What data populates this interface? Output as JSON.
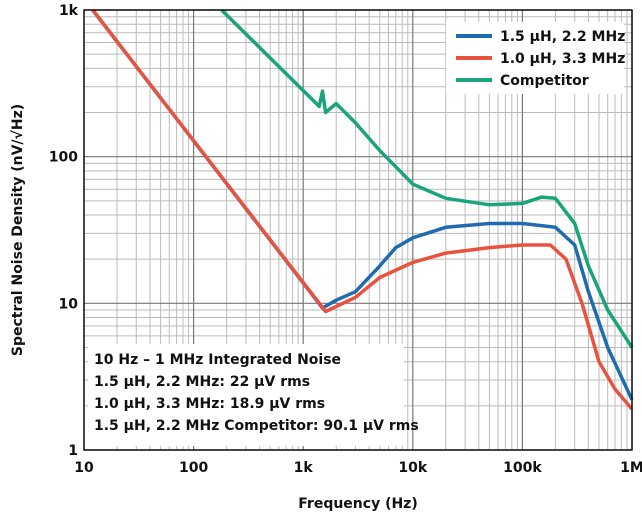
{
  "chart_data": {
    "type": "line",
    "xlabel": "Frequency (Hz)",
    "ylabel": "Spectral Noise Density (nV/√Hz)",
    "xscale": "log",
    "yscale": "log",
    "xlim": [
      10,
      1000000
    ],
    "ylim": [
      1,
      1000
    ],
    "grid": true,
    "legend_placement": "top-right",
    "x_ticks": [
      {
        "v": 10,
        "label": "10"
      },
      {
        "v": 100,
        "label": "100"
      },
      {
        "v": 1000,
        "label": "1k"
      },
      {
        "v": 10000,
        "label": "10k"
      },
      {
        "v": 100000,
        "label": "100k"
      },
      {
        "v": 1000000,
        "label": "1M"
      }
    ],
    "y_ticks": [
      {
        "v": 1,
        "label": "1"
      },
      {
        "v": 10,
        "label": "10"
      },
      {
        "v": 100,
        "label": "100"
      },
      {
        "v": 1000,
        "label": "1k"
      }
    ],
    "series": [
      {
        "name": "1.5 µH, 2.2 MHz",
        "color": "#1f6bb0",
        "points": [
          [
            12,
            1000
          ],
          [
            1500,
            9.3
          ],
          [
            2000,
            10.5
          ],
          [
            3000,
            12
          ],
          [
            5000,
            18
          ],
          [
            7000,
            24
          ],
          [
            10000,
            28
          ],
          [
            20000,
            33
          ],
          [
            50000,
            35
          ],
          [
            100000,
            35
          ],
          [
            200000,
            33
          ],
          [
            300000,
            25
          ],
          [
            400000,
            12
          ],
          [
            600000,
            5
          ],
          [
            1000000,
            2.2
          ]
        ]
      },
      {
        "name": "1.0 µH, 3.3 MHz",
        "color": "#e8523f",
        "points": [
          [
            12,
            1000
          ],
          [
            1600,
            8.8
          ],
          [
            3000,
            11
          ],
          [
            5000,
            15
          ],
          [
            10000,
            19
          ],
          [
            20000,
            22
          ],
          [
            50000,
            24
          ],
          [
            100000,
            25
          ],
          [
            180000,
            25
          ],
          [
            250000,
            20
          ],
          [
            350000,
            10
          ],
          [
            500000,
            4
          ],
          [
            700000,
            2.6
          ],
          [
            1000000,
            1.9
          ]
        ]
      },
      {
        "name": "Competitor",
        "color": "#1aa47c",
        "points": [
          [
            180,
            1000
          ],
          [
            1400,
            220
          ],
          [
            1500,
            280
          ],
          [
            1600,
            200
          ],
          [
            2000,
            230
          ],
          [
            3000,
            170
          ],
          [
            5000,
            110
          ],
          [
            10000,
            65
          ],
          [
            20000,
            52
          ],
          [
            50000,
            47
          ],
          [
            100000,
            48
          ],
          [
            150000,
            53
          ],
          [
            200000,
            52
          ],
          [
            300000,
            35
          ],
          [
            400000,
            18
          ],
          [
            600000,
            9
          ],
          [
            1000000,
            5
          ]
        ]
      }
    ],
    "annotation": [
      "10 Hz – 1 MHz Integrated Noise",
      "1.5 µH, 2.2 MHz: 22 µV rms",
      "1.0 µH, 3.3 MHz: 18.9 µV rms",
      "1.5 µH, 2.2 MHz Competitor: 90.1 µV rms"
    ]
  }
}
